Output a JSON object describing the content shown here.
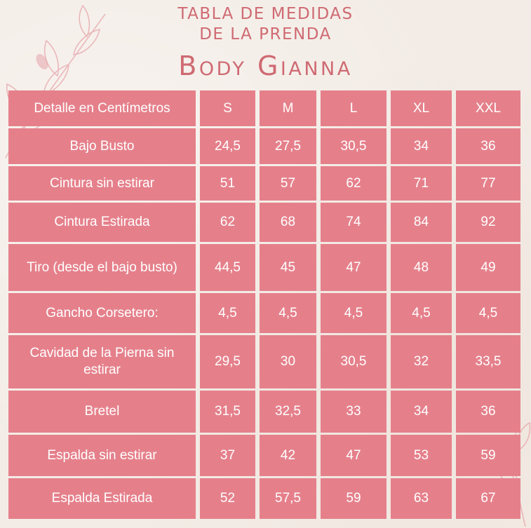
{
  "header": {
    "line1": "TABLA DE MEDIDAS",
    "line2": "DE LA PRENDA",
    "product": "Body Gianna"
  },
  "colors": {
    "accent": "#cf6a72",
    "cell_fill": "#e5808b",
    "background": "#f3ece6",
    "cell_text": "#ffffff"
  },
  "table": {
    "headers": [
      "Detalle en Centímetros",
      "S",
      "M",
      "L",
      "XL",
      "XXL"
    ],
    "rows": [
      [
        "Bajo Busto",
        "24,5",
        "27,5",
        "30,5",
        "34",
        "36"
      ],
      [
        "Cintura sin estirar",
        "51",
        "57",
        "62",
        "71",
        "77"
      ],
      [
        "Cintura Estirada",
        "62",
        "68",
        "74",
        "84",
        "92"
      ],
      [
        "Tiro (desde el bajo busto)",
        "44,5",
        "45",
        "47",
        "48",
        "49"
      ],
      [
        "Gancho Corsetero:",
        "4,5",
        "4,5",
        "4,5",
        "4,5",
        "4,5"
      ],
      [
        "Cavidad de la Pierna sin estirar",
        "29,5",
        "30",
        "30,5",
        "32",
        "33,5"
      ],
      [
        "Bretel",
        "31,5",
        "32,5",
        "33",
        "34",
        "36"
      ],
      [
        "Espalda sin estirar",
        "37",
        "42",
        "47",
        "53",
        "59"
      ],
      [
        "Espalda Estirada",
        "52",
        "57,5",
        "59",
        "63",
        "67"
      ]
    ]
  }
}
